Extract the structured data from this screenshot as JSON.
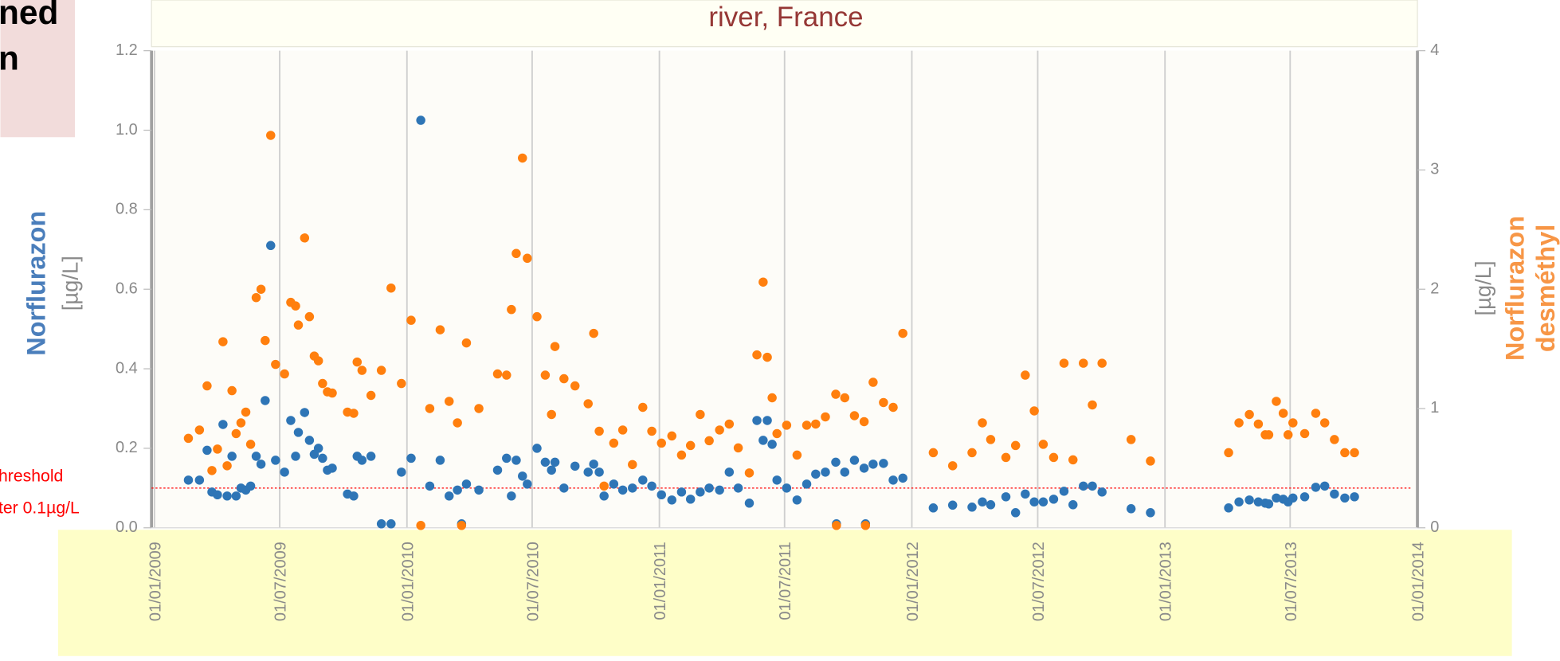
{
  "panel": {
    "lines": [
      "ned",
      "n"
    ]
  },
  "chart_data": {
    "type": "scatter",
    "title": "river, France",
    "ylabel": "Norflurazon",
    "yunit": "[µg/L]",
    "y2label": [
      "Norflurazon",
      "desméthyl"
    ],
    "y2unit": "[µg/L]",
    "threshold": {
      "value": 0.1,
      "label_lines": [
        "hreshold",
        "ter 0.1µg/L"
      ],
      "color": "#ff0000"
    },
    "grid": true,
    "xlim": [
      "2009-01-01",
      "2014-01-01"
    ],
    "xticks": [
      {
        "value": "2009-01-01",
        "label": "01/01/2009"
      },
      {
        "value": "2009-07-01",
        "label": "01/07/2009"
      },
      {
        "value": "2010-01-01",
        "label": "01/01/2010"
      },
      {
        "value": "2010-07-01",
        "label": "01/07/2010"
      },
      {
        "value": "2011-01-01",
        "label": "01/01/2011"
      },
      {
        "value": "2011-07-01",
        "label": "01/07/2011"
      },
      {
        "value": "2012-01-01",
        "label": "01/01/2012"
      },
      {
        "value": "2012-07-01",
        "label": "01/07/2012"
      },
      {
        "value": "2013-01-01",
        "label": "01/01/2013"
      },
      {
        "value": "2013-07-01",
        "label": "01/07/2013"
      },
      {
        "value": "2014-01-01",
        "label": "01/01/2014"
      }
    ],
    "ylim": [
      0,
      1.2
    ],
    "yticks": [
      {
        "value": 0,
        "label": "0.0"
      },
      0.2,
      0.4,
      0.6,
      0.8,
      {
        "value": 1,
        "label": "1.0"
      },
      1.2
    ],
    "y2lim": [
      0,
      4
    ],
    "y2ticks": [
      0,
      1,
      2,
      3,
      4
    ],
    "x": [
      "2009-02-19",
      "2009-03-07",
      "2009-03-18",
      "2009-03-25",
      "2009-04-02",
      "2009-04-10",
      "2009-04-16",
      "2009-04-23",
      "2009-04-29",
      "2009-05-06",
      "2009-05-13",
      "2009-05-20",
      "2009-05-28",
      "2009-06-04",
      "2009-06-10",
      "2009-06-18",
      "2009-06-25",
      "2009-07-08",
      "2009-07-17",
      "2009-07-24",
      "2009-07-28",
      "2009-08-06",
      "2009-08-13",
      "2009-08-20",
      "2009-08-26",
      "2009-09-01",
      "2009-09-08",
      "2009-09-15",
      "2009-10-07",
      "2009-10-16",
      "2009-10-21",
      "2009-10-28",
      "2009-11-10",
      "2009-11-25",
      "2009-12-09",
      "2009-12-24",
      "2010-01-07",
      "2010-01-21",
      "2010-02-03",
      "2010-02-18",
      "2010-03-03",
      "2010-03-15",
      "2010-03-21",
      "2010-03-28",
      "2010-04-15",
      "2010-05-12",
      "2010-05-25",
      "2010-06-01",
      "2010-06-08",
      "2010-06-17",
      "2010-06-24",
      "2010-07-08",
      "2010-07-20",
      "2010-07-29",
      "2010-08-03",
      "2010-08-16",
      "2010-09-01",
      "2010-09-20",
      "2010-09-28",
      "2010-10-06",
      "2010-10-13",
      "2010-10-27",
      "2010-11-09",
      "2010-11-23",
      "2010-12-08",
      "2010-12-21",
      "2011-01-04",
      "2011-01-19",
      "2011-02-02",
      "2011-02-15",
      "2011-03-01",
      "2011-03-14",
      "2011-03-29",
      "2011-04-12",
      "2011-04-25",
      "2011-05-11",
      "2011-05-22",
      "2011-05-31",
      "2011-06-06",
      "2011-06-13",
      "2011-06-20",
      "2011-07-04",
      "2011-07-19",
      "2011-08-02",
      "2011-08-15",
      "2011-08-29",
      "2011-09-13",
      "2011-09-14",
      "2011-09-26",
      "2011-10-10",
      "2011-10-24",
      "2011-10-26",
      "2011-11-06",
      "2011-11-21",
      "2011-12-05",
      "2011-12-19",
      "2012-02-01",
      "2012-02-29",
      "2012-03-28",
      "2012-04-12",
      "2012-04-24",
      "2012-05-16",
      "2012-05-30",
      "2012-06-13",
      "2012-06-26",
      "2012-07-09",
      "2012-07-24",
      "2012-08-08",
      "2012-08-21",
      "2012-09-05",
      "2012-09-18",
      "2012-10-02",
      "2012-11-13",
      "2012-12-11",
      "2013-04-03",
      "2013-04-18",
      "2013-05-03",
      "2013-05-16",
      "2013-05-26",
      "2013-05-31",
      "2013-06-11",
      "2013-06-21",
      "2013-06-28",
      "2013-07-05",
      "2013-07-22",
      "2013-08-07",
      "2013-08-20",
      "2013-09-03",
      "2013-09-18",
      "2013-10-02"
    ],
    "series": [
      {
        "color": "#2e75b6",
        "values": [
          0.12,
          0.12,
          0.195,
          0.09,
          0.083,
          0.26,
          0.08,
          0.18,
          0.08,
          0.1,
          0.095,
          0.105,
          0.18,
          0.16,
          0.32,
          0.71,
          0.17,
          0.14,
          0.27,
          0.18,
          0.24,
          0.29,
          0.22,
          0.185,
          0.2,
          0.175,
          0.145,
          0.15,
          0.085,
          0.08,
          0.18,
          0.17,
          0.18,
          0.01,
          0.01,
          0.14,
          0.175,
          1.025,
          0.105,
          0.17,
          0.08,
          0.095,
          0.01,
          0.11,
          0.095,
          0.145,
          0.175,
          0.08,
          0.17,
          0.13,
          0.11,
          0.2,
          0.165,
          0.145,
          0.165,
          0.1,
          0.155,
          0.14,
          0.16,
          0.14,
          0.08,
          0.11,
          0.095,
          0.1,
          0.12,
          0.105,
          0.083,
          0.07,
          0.09,
          0.072,
          0.09,
          0.1,
          0.095,
          0.14,
          0.1,
          0.062,
          0.27,
          0.22,
          0.27,
          0.21,
          0.12,
          0.1,
          0.07,
          0.11,
          0.135,
          0.14,
          0.165,
          0.01,
          0.14,
          0.17,
          0.15,
          0.01,
          0.16,
          0.162,
          0.12,
          0.125,
          0.05,
          0.057,
          0.052,
          0.065,
          0.058,
          0.078,
          0.038,
          0.085,
          0.065,
          0.065,
          0.072,
          0.092,
          0.058,
          0.105,
          0.105,
          0.09,
          0.048,
          0.038,
          0.05,
          0.065,
          0.07,
          0.065,
          0.062,
          0.06,
          0.075,
          0.072,
          0.065,
          0.075,
          0.078,
          0.102,
          0.105,
          0.085,
          0.075,
          0.078
        ]
      },
      {
        "color": "#ff7f0e",
        "axis": "y2",
        "values": [
          0.75,
          0.82,
          1.19,
          0.48,
          0.66,
          1.56,
          0.52,
          1.15,
          0.79,
          0.88,
          0.97,
          0.7,
          1.93,
          2.0,
          1.57,
          3.29,
          1.37,
          1.29,
          1.89,
          1.86,
          1.7,
          2.43,
          1.77,
          1.44,
          1.4,
          1.21,
          1.14,
          1.13,
          0.97,
          0.96,
          1.39,
          1.32,
          1.11,
          1.32,
          2.01,
          1.21,
          1.74,
          0.02,
          1.0,
          1.66,
          1.06,
          0.88,
          0.02,
          1.55,
          1.0,
          1.29,
          1.28,
          1.83,
          2.3,
          3.1,
          2.26,
          1.77,
          1.28,
          0.95,
          1.52,
          1.25,
          1.19,
          1.04,
          1.63,
          0.81,
          0.35,
          0.71,
          0.82,
          0.53,
          1.01,
          0.81,
          0.71,
          0.77,
          0.61,
          0.69,
          0.95,
          0.73,
          0.82,
          0.87,
          0.67,
          0.46,
          1.45,
          2.06,
          1.43,
          1.09,
          0.79,
          0.86,
          0.61,
          0.86,
          0.87,
          0.93,
          1.12,
          0.02,
          1.09,
          0.94,
          0.89,
          0.02,
          1.22,
          1.05,
          1.01,
          1.63,
          0.63,
          0.52,
          0.63,
          0.88,
          0.74,
          0.59,
          0.69,
          1.28,
          0.98,
          0.7,
          0.59,
          1.38,
          0.57,
          1.38,
          1.03,
          1.38,
          0.74,
          0.56,
          0.63,
          0.88,
          0.95,
          0.87,
          0.78,
          0.78,
          1.06,
          0.96,
          0.78,
          0.88,
          0.79,
          0.96,
          0.88,
          0.74,
          0.63,
          0.63
        ]
      }
    ]
  }
}
